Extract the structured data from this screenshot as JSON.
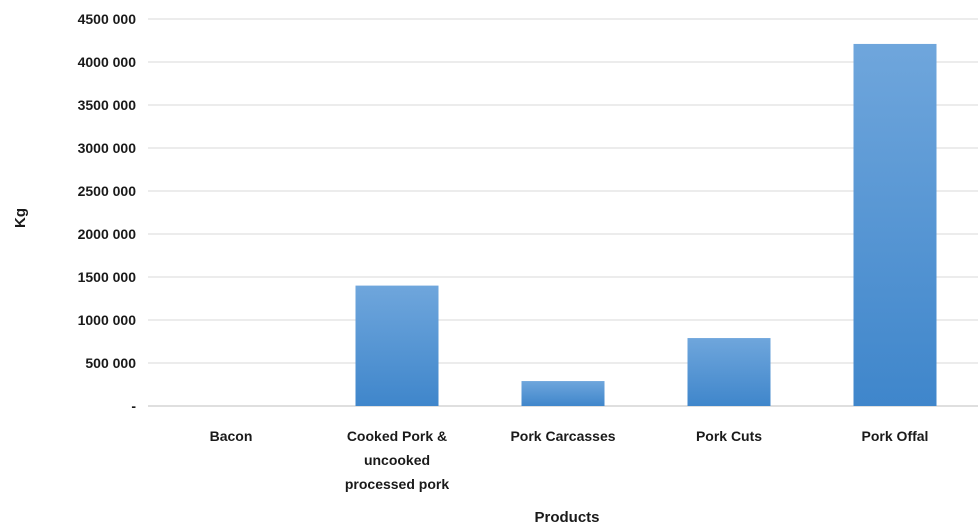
{
  "chart_data": {
    "type": "bar",
    "categories": [
      [
        "Bacon"
      ],
      [
        "Cooked Pork &",
        "uncooked",
        "processed pork"
      ],
      [
        "Pork Carcasses"
      ],
      [
        "Pork Cuts"
      ],
      [
        "Pork Offal"
      ]
    ],
    "values": [
      0,
      1400000,
      290000,
      790000,
      4210000
    ],
    "xlabel": "Products",
    "ylabel": "Kg",
    "ylim": [
      0,
      4500000
    ],
    "yticks": [
      0,
      500000,
      1000000,
      1500000,
      2000000,
      2500000,
      3000000,
      3500000,
      4000000,
      4500000
    ],
    "ytick_labels": [
      "-",
      "500 000",
      "1000 000",
      "1500 000",
      "2000 000",
      "2500 000",
      "3000 000",
      "3500 000",
      "4000 000",
      "4500 000"
    ],
    "grid": true,
    "legend": "none",
    "colors": {
      "bar_top": "#6fa6dc",
      "bar_bottom": "#3f86cb",
      "grid": "#d9d9d9",
      "text": "#1a1a1a"
    }
  }
}
